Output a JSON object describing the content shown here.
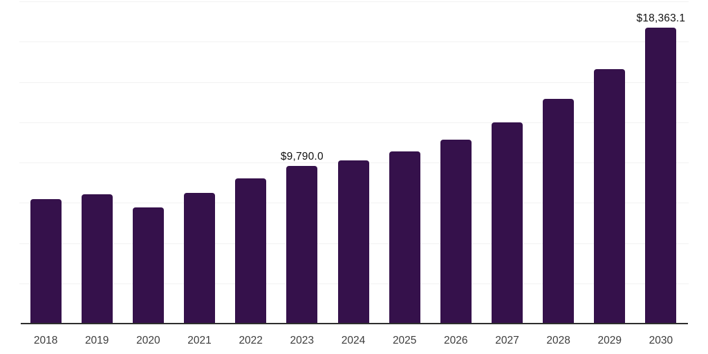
{
  "chart_data": {
    "type": "bar",
    "title": "",
    "xlabel": "",
    "ylabel": "",
    "categories": [
      "2018",
      "2019",
      "2020",
      "2021",
      "2022",
      "2023",
      "2024",
      "2025",
      "2026",
      "2027",
      "2028",
      "2029",
      "2030"
    ],
    "values": [
      7725,
      8015,
      7195,
      8125,
      9000,
      9790.0,
      10140,
      10675,
      11430,
      12475,
      13935,
      15795,
      18363.1
    ],
    "value_labels": {
      "2023": "$9,790.0",
      "2030": "$18,363.1"
    },
    "ylim": [
      0,
      20000
    ],
    "gridline_step": 2500,
    "grid": "horizontal-only",
    "legend": "none",
    "y_axis_tick_labels": "none",
    "colors": {
      "bar": "#35114B",
      "axis_line": "#2e2e2e",
      "gridline": "#f2f2f2",
      "value_label": "#111111",
      "tick_label": "#3d3d3d",
      "background": "#ffffff"
    }
  }
}
